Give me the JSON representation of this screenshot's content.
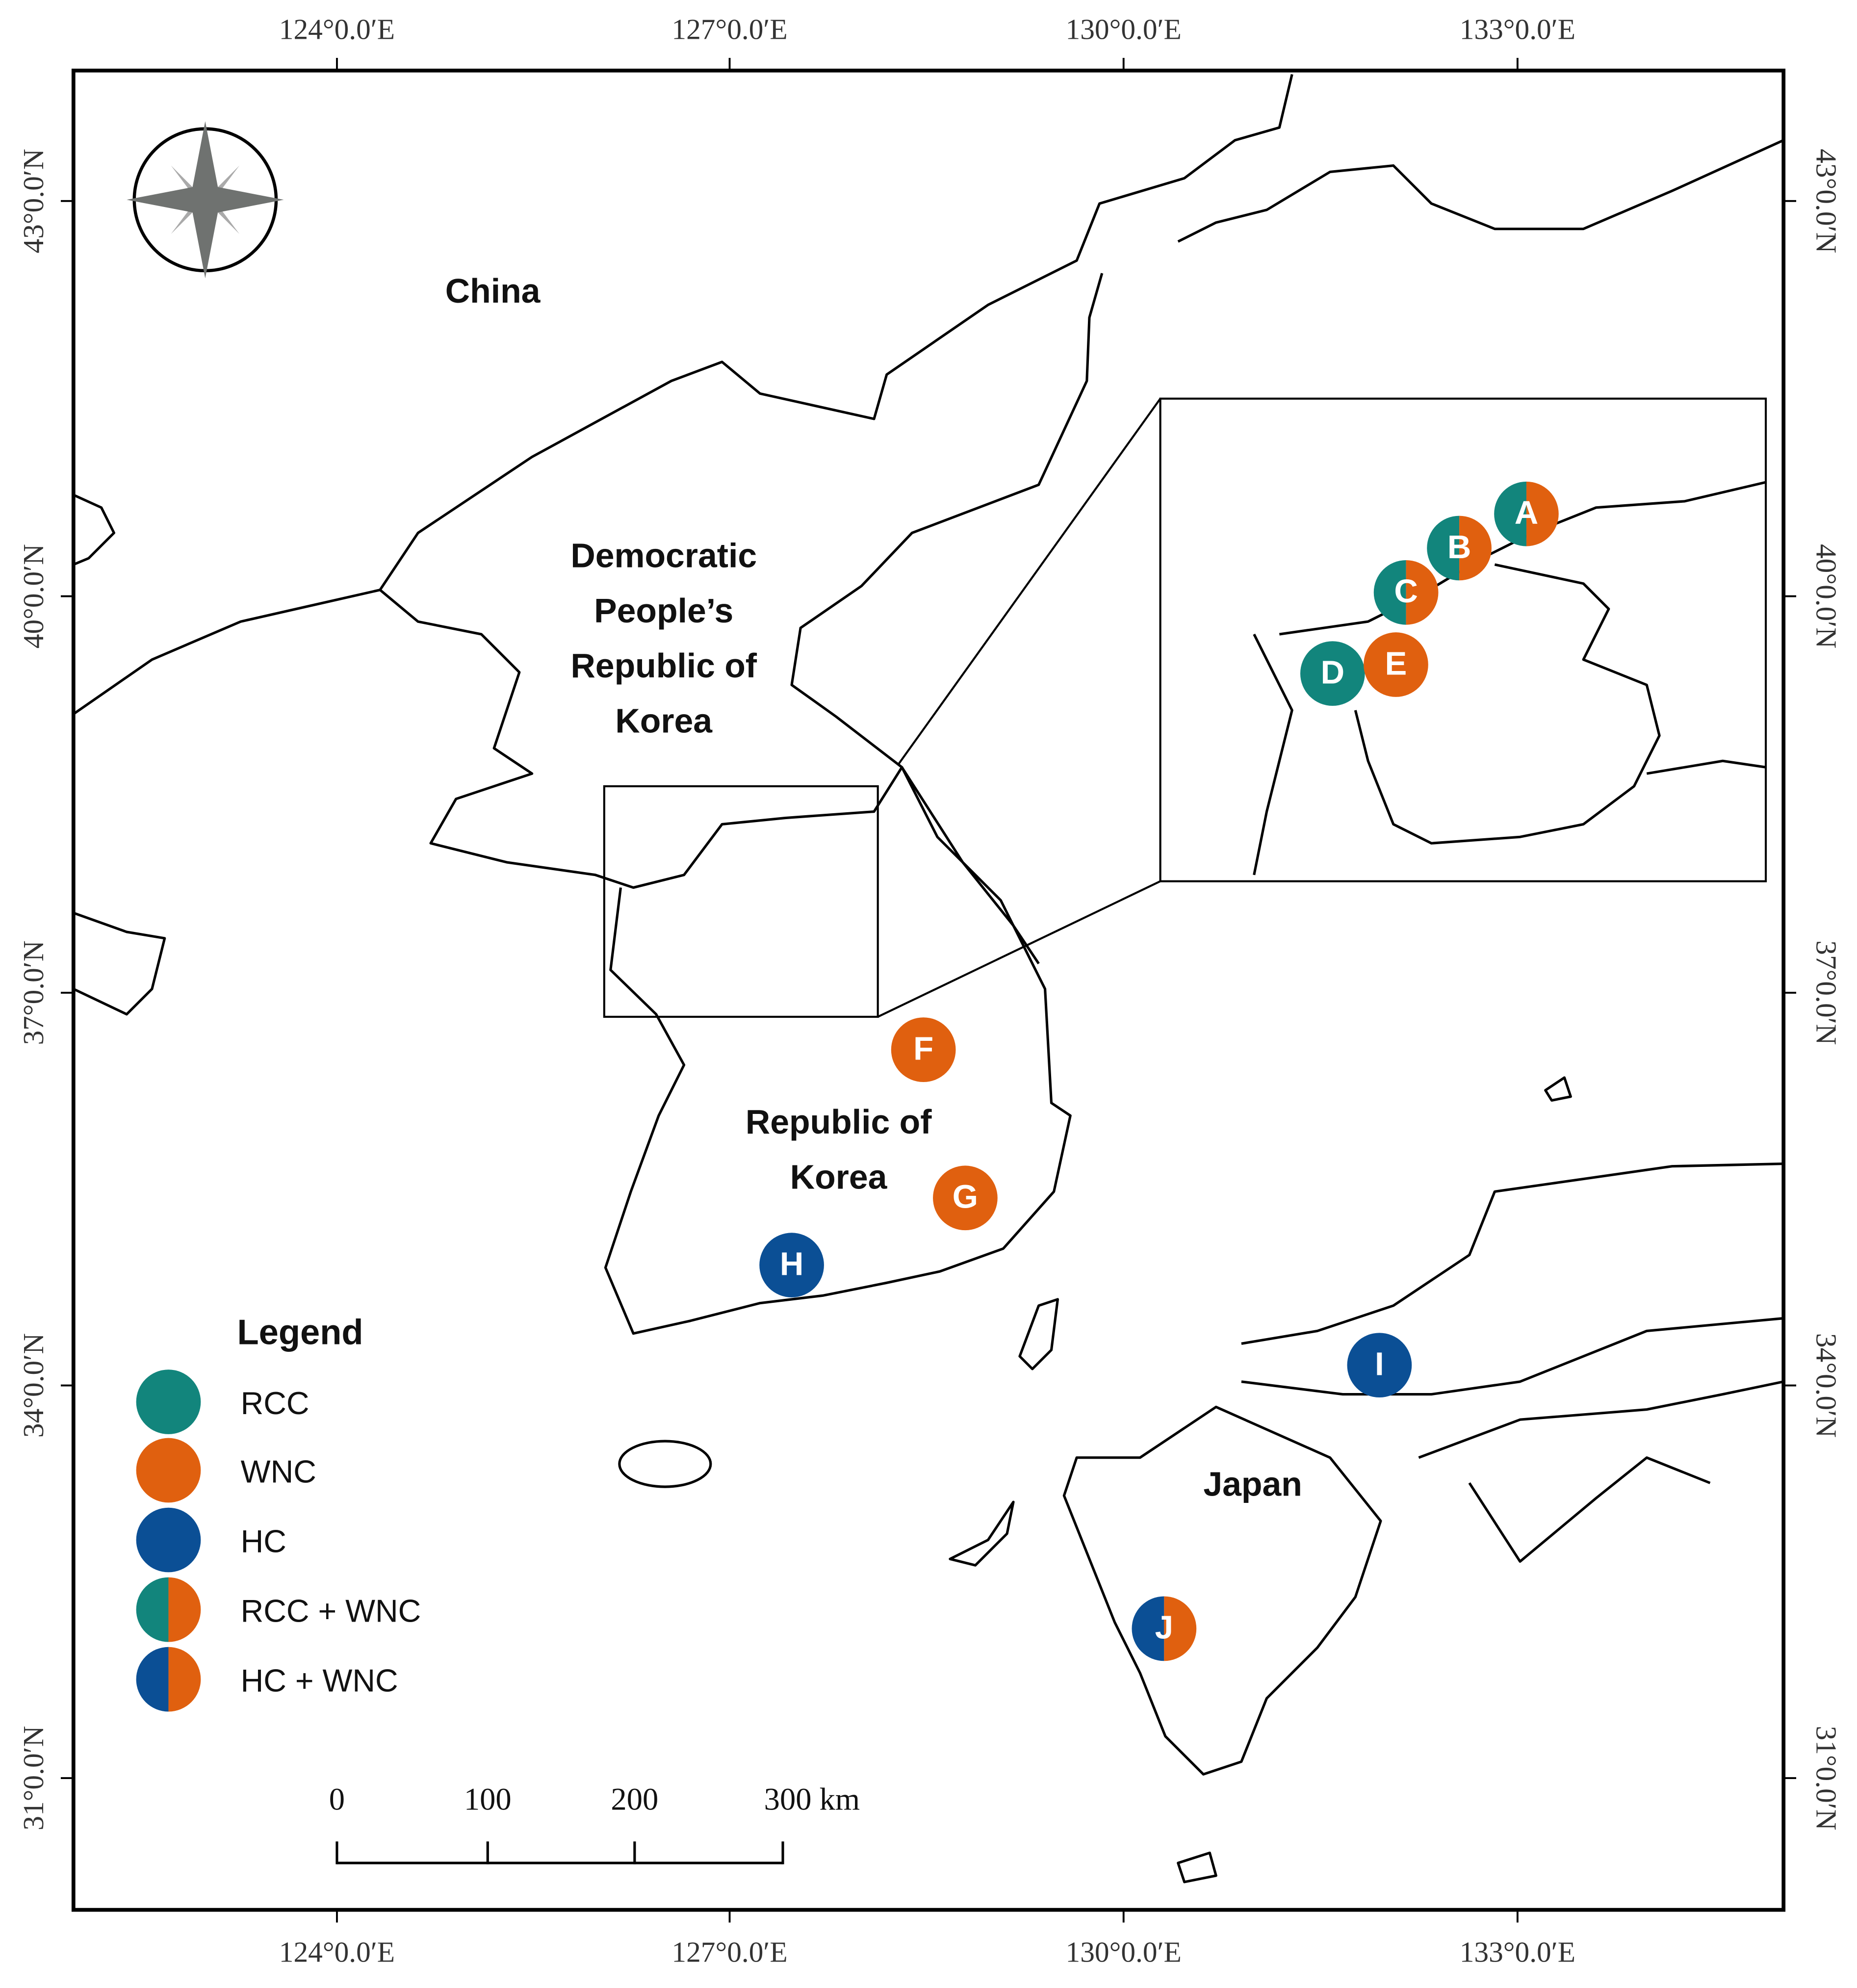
{
  "lon_labels": [
    "124°0.0′E",
    "127°0.0′E",
    "130°0.0′E",
    "133°0.0′E"
  ],
  "lat_labels": [
    "43°0.0′N",
    "40°0.0′N",
    "37°0.0′N",
    "34°0.0′N",
    "31°0.0′N"
  ],
  "places": [
    {
      "lines": [
        "China"
      ]
    },
    {
      "lines": [
        "Democratic",
        "People’s",
        "Republic of",
        "Korea"
      ]
    },
    {
      "lines": [
        "Republic of",
        "Korea"
      ]
    },
    {
      "lines": [
        "Japan"
      ]
    }
  ],
  "sites": [
    {
      "label": "A",
      "colors": [
        "#12857c",
        "#e0600f"
      ]
    },
    {
      "label": "B",
      "colors": [
        "#12857c",
        "#e0600f"
      ]
    },
    {
      "label": "C",
      "colors": [
        "#12857c",
        "#e0600f"
      ]
    },
    {
      "label": "D",
      "colors": [
        "#12857c"
      ]
    },
    {
      "label": "E",
      "colors": [
        "#e0600f"
      ]
    },
    {
      "label": "F",
      "colors": [
        "#e0600f"
      ]
    },
    {
      "label": "G",
      "colors": [
        "#e0600f"
      ]
    },
    {
      "label": "H",
      "colors": [
        "#0b4f95"
      ]
    },
    {
      "label": "I",
      "colors": [
        "#0b4f95"
      ]
    },
    {
      "label": "J",
      "colors": [
        "#0b4f95",
        "#e0600f"
      ]
    }
  ],
  "legend": {
    "title": "Legend",
    "items": [
      {
        "label": "RCC",
        "colors": [
          "#12857c"
        ]
      },
      {
        "label": "WNC",
        "colors": [
          "#e0600f"
        ]
      },
      {
        "label": "HC",
        "colors": [
          "#0b4f95"
        ]
      },
      {
        "label": "RCC + WNC",
        "colors": [
          "#12857c",
          "#e0600f"
        ]
      },
      {
        "label": "HC + WNC",
        "colors": [
          "#0b4f95",
          "#e0600f"
        ]
      }
    ]
  },
  "scale_bar": {
    "labels": [
      "0",
      "100",
      "200",
      "300 km"
    ]
  }
}
